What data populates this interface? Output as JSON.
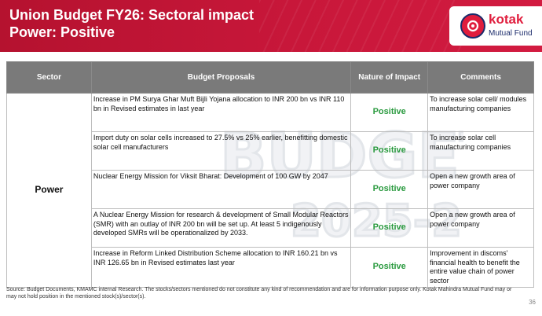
{
  "header": {
    "title_line1": "Union Budget FY26: Sectoral impact",
    "title_line2": "Power: Positive",
    "logo_name": "kotak",
    "logo_sub": "Mutual Fund"
  },
  "colors": {
    "brand_red": "#c8173a",
    "positive_green": "#2a9a3f",
    "header_gray": "#7a7a7a"
  },
  "table": {
    "headers": [
      "Sector",
      "Budget Proposals",
      "Nature of Impact",
      "Comments"
    ],
    "sector": "Power",
    "rows": [
      {
        "proposal": "Increase in PM Surya Ghar Muft Bijli Yojana allocation to INR 200 bn vs INR 110 bn in Revised estimates in last year",
        "impact": "Positive",
        "comment": "To increase solar cell/ modules manufacturing companies"
      },
      {
        "proposal": "Import duty on solar cells increased to 27.5% vs 25% earlier, benefitting domestic solar cell manufacturers",
        "impact": "Positive",
        "comment": "To increase solar cell manufacturing companies"
      },
      {
        "proposal": "Nuclear Energy Mission for Viksit Bharat: Development of 100 GW by 2047",
        "impact": "Positive",
        "comment": "Open a new growth area of power company"
      },
      {
        "proposal": "A Nuclear Energy Mission for research & development of Small Modular Reactors (SMR) with an outlay of INR 200 bn will be set up.  At least 5 indigenously developed SMRs will be operationalized by 2033.",
        "impact": "Positive",
        "comment": "Open a new growth area of power company"
      },
      {
        "proposal": "Increase in Reform Linked Distribution Scheme allocation to INR 160.21 bn vs INR 126.65 bn in Revised estimates last year",
        "impact": "Positive",
        "comment": "Improvement in discoms' financial health to benefit the entire value chain of power sector"
      }
    ]
  },
  "footer": {
    "source": "Source: Budget Documents, KMAMC internal Research. The stocks/sectors mentioned do not constitute any kind of recommendation and are for information purpose only. Kotak Mahindra Mutual Fund may or may not hold position in the mentioned stock(s)/sector(s).",
    "page_number": "36"
  }
}
